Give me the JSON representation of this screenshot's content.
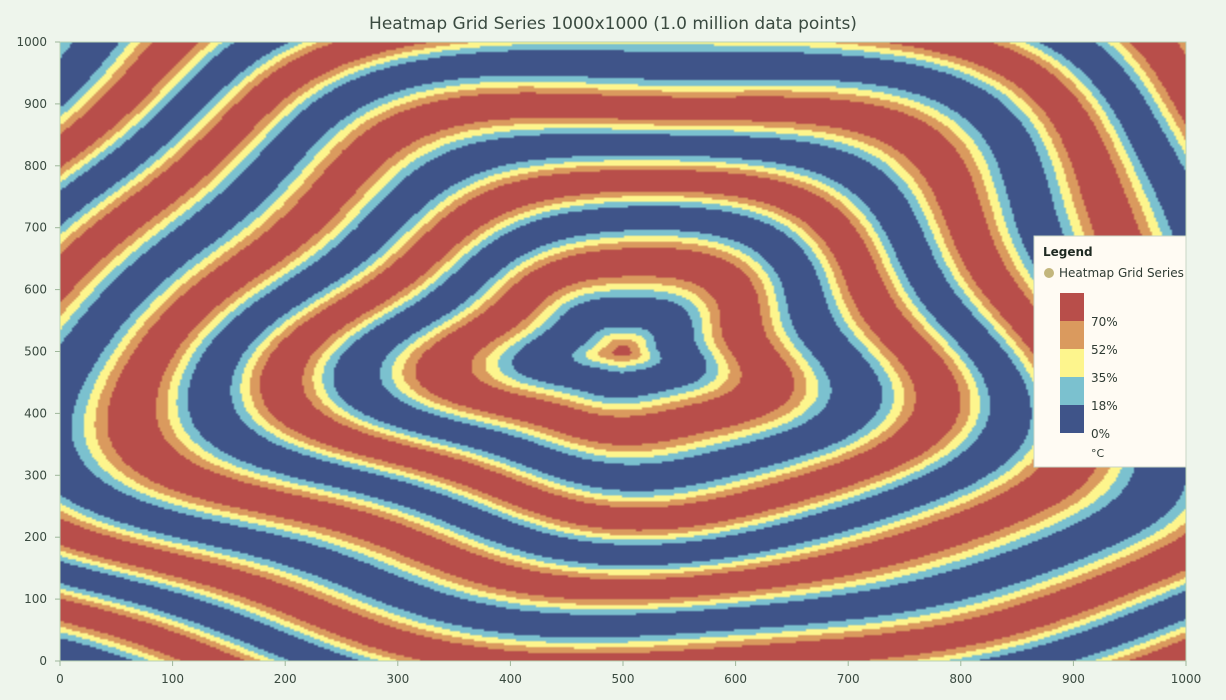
{
  "chart_data": {
    "type": "heatmap",
    "title": "Heatmap Grid Series 1000x1000 (1.0 million data points)",
    "xlim": [
      0,
      1000
    ],
    "ylim": [
      0,
      1000
    ],
    "x_ticks": [
      "0",
      "100",
      "200",
      "300",
      "400",
      "500",
      "600",
      "700",
      "800",
      "900",
      "1000"
    ],
    "y_ticks": [
      "0",
      "100",
      "200",
      "300",
      "400",
      "500",
      "600",
      "700",
      "800",
      "900",
      "1000"
    ],
    "grid": false,
    "legend": {
      "title": "Legend",
      "placement": "right",
      "series_name": "Heatmap Grid Series",
      "unit": "°C",
      "levels": [
        {
          "label": "70%",
          "value": 70,
          "color": "#b84e4a"
        },
        {
          "label": "52%",
          "value": 52,
          "color": "#da9a5e"
        },
        {
          "label": "35%",
          "value": 35,
          "color": "#fdf58d"
        },
        {
          "label": "18%",
          "value": 18,
          "color": "#7bc1cf"
        },
        {
          "label": "0%",
          "value": 0,
          "color": "#3f5489"
        }
      ]
    },
    "color_bands": [
      "#3f5489",
      "#7bc1cf",
      "#fdf58d",
      "#da9a5e",
      "#b84e4a"
    ]
  }
}
